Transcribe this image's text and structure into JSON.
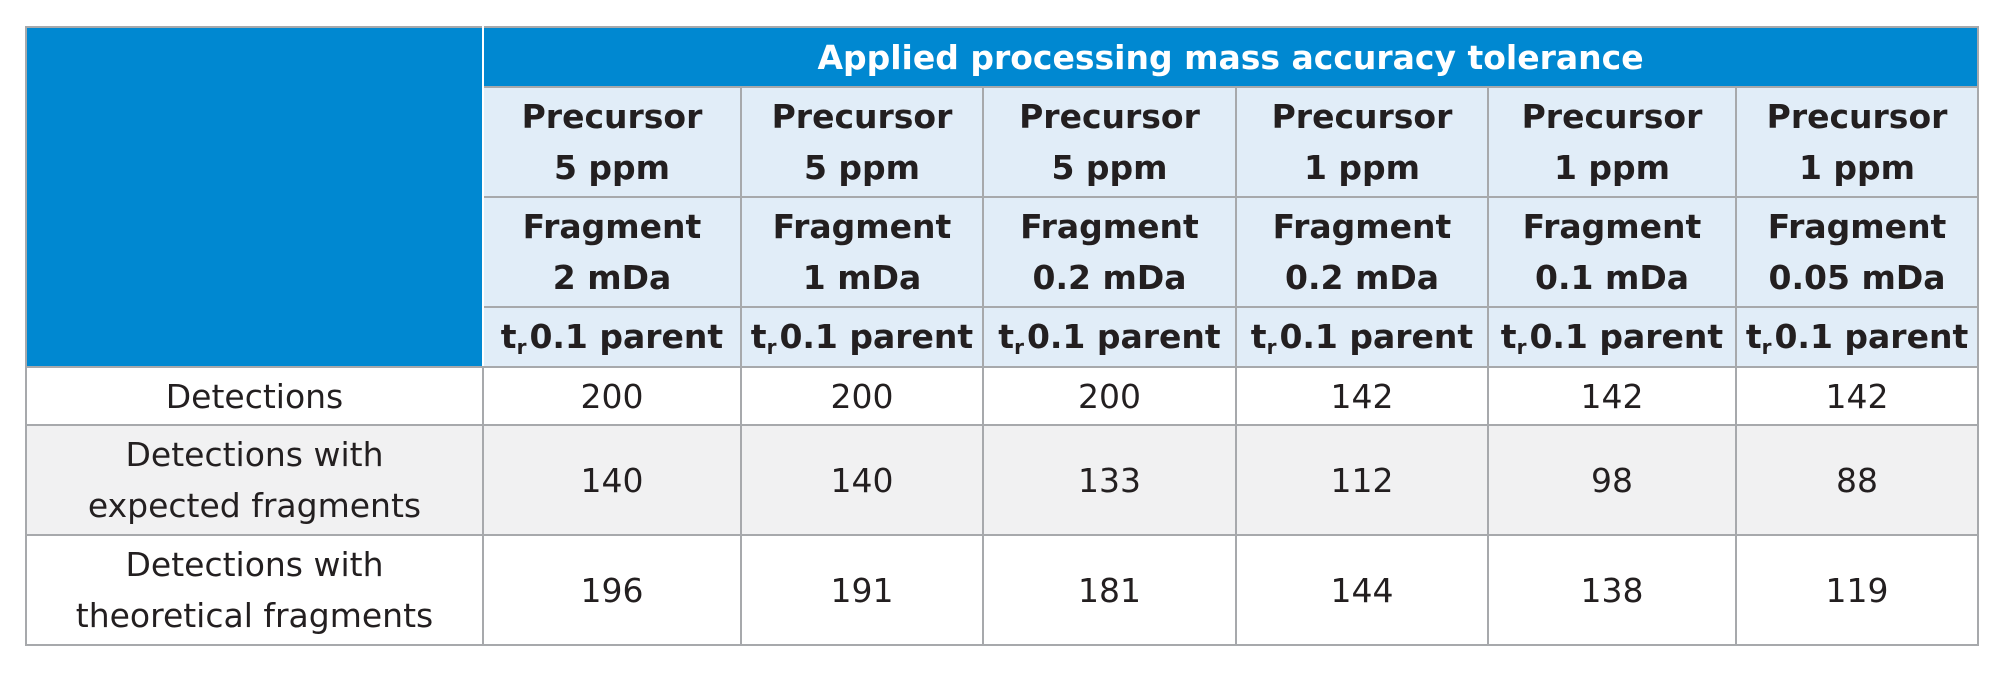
{
  "table": {
    "header_title": "Applied processing mass accuracy tolerance",
    "columns": [
      {
        "precursor_label": "Precursor",
        "precursor_value": "5 ppm",
        "fragment_label": "Fragment",
        "fragment_value": "2 mDa",
        "tr_symbol": "t",
        "tr_sub": "r",
        "tr_text": "0.1 parent"
      },
      {
        "precursor_label": "Precursor",
        "precursor_value": "5 ppm",
        "fragment_label": "Fragment",
        "fragment_value": "1 mDa",
        "tr_symbol": "t",
        "tr_sub": "r",
        "tr_text": "0.1 parent"
      },
      {
        "precursor_label": "Precursor",
        "precursor_value": "5 ppm",
        "fragment_label": "Fragment",
        "fragment_value": "0.2 mDa",
        "tr_symbol": "t",
        "tr_sub": "r",
        "tr_text": "0.1 parent"
      },
      {
        "precursor_label": "Precursor",
        "precursor_value": "1 ppm",
        "fragment_label": "Fragment",
        "fragment_value": "0.2 mDa",
        "tr_symbol": "t",
        "tr_sub": "r",
        "tr_text": "0.1 parent"
      },
      {
        "precursor_label": "Precursor",
        "precursor_value": "1 ppm",
        "fragment_label": "Fragment",
        "fragment_value": "0.1 mDa",
        "tr_symbol": "t",
        "tr_sub": "r",
        "tr_text": "0.1 parent"
      },
      {
        "precursor_label": "Precursor",
        "precursor_value": "1 ppm",
        "fragment_label": "Fragment",
        "fragment_value": "0.05 mDa",
        "tr_symbol": "t",
        "tr_sub": "r",
        "tr_text": "0.1 parent"
      }
    ],
    "rows": [
      {
        "label_line1": "Detections",
        "label_line2": "",
        "values": [
          "200",
          "200",
          "200",
          "142",
          "142",
          "142"
        ]
      },
      {
        "label_line1": "Detections with",
        "label_line2": "expected fragments",
        "values": [
          "140",
          "140",
          "133",
          "112",
          "98",
          "88"
        ]
      },
      {
        "label_line1": "Detections with",
        "label_line2": "theoretical fragments",
        "values": [
          "196",
          "191",
          "181",
          "144",
          "138",
          "119"
        ]
      }
    ]
  },
  "colors": {
    "header_blue": "#0088d1",
    "subheader_light_blue": "#e1edf8",
    "row_gray": "#f1f1f2",
    "border_gray": "#a7a9ac"
  }
}
